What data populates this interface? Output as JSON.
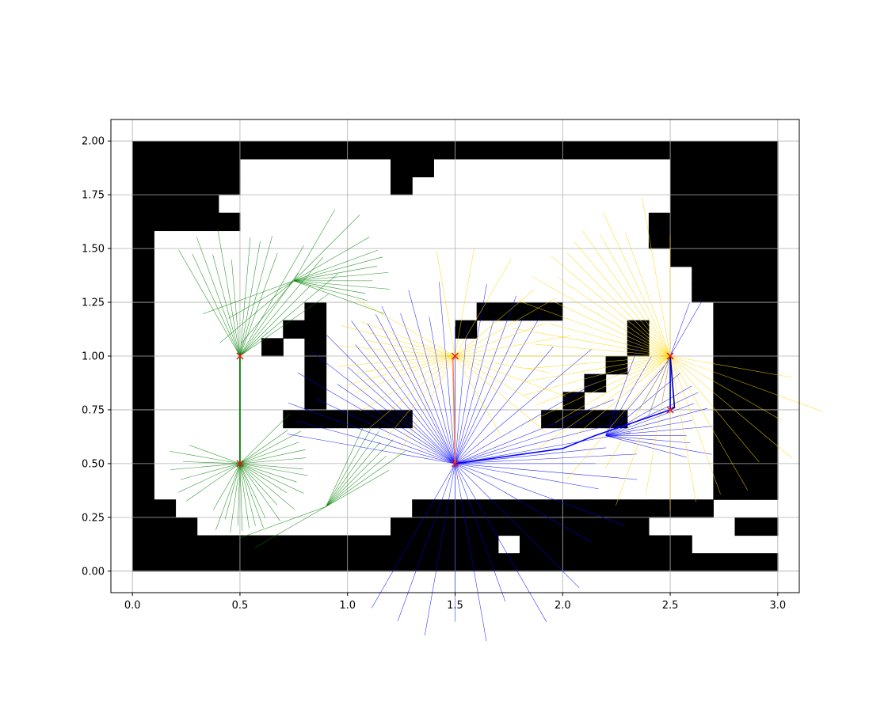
{
  "chart_data": {
    "type": "scatter",
    "title": "",
    "xlabel": "",
    "ylabel": "",
    "xlim": [
      -0.1,
      3.1
    ],
    "ylim": [
      -0.1,
      2.1
    ],
    "grid": true,
    "cell_size": 0.1,
    "xticks": [
      0.0,
      0.5,
      1.0,
      1.5,
      2.0,
      2.5,
      3.0
    ],
    "xtick_labels": [
      "0.0",
      "0.5",
      "1.0",
      "1.5",
      "2.0",
      "2.5",
      "3.0"
    ],
    "yticks": [
      0.0,
      0.25,
      0.5,
      0.75,
      1.0,
      1.25,
      1.5,
      1.75,
      2.0
    ],
    "ytick_labels": [
      "0.00",
      "0.25",
      "0.50",
      "0.75",
      "1.00",
      "1.25",
      "1.50",
      "1.75",
      "2.00"
    ],
    "occupancy_grid": [
      "##############################",
      "#####.......##...........#####",
      "#####.......#............#####",
      "####.....................#####",
      "#####...................######",
      "#.......................######",
      "#........................#####",
      "#.........................####",
      "#.........................####",
      "#.......#.......####.......###",
      "#......##......#.......#...###",
      "#.....#.#..............#...###",
      "#.......#.............#....###",
      "#.......#............#.....###",
      "#.......#...........#......###",
      "#......######......####....###",
      "#..........................###",
      "#..........................###",
      "#..........................###",
      "#..........................###",
      "##...........##############..",
      "###.........############....##",
      "#################.########....",
      "##############################"
    ],
    "nodes": [
      {
        "x": 0.5,
        "y": 1.0
      },
      {
        "x": 0.5,
        "y": 0.5
      },
      {
        "x": 1.5,
        "y": 1.0
      },
      {
        "x": 1.5,
        "y": 0.5
      },
      {
        "x": 2.5,
        "y": 1.0
      },
      {
        "x": 2.5,
        "y": 0.75
      }
    ],
    "node_marker_color": "#e41a1c",
    "series": [
      {
        "color": "#008000",
        "paths": [
          [
            [
              0.5,
              1.0
            ],
            [
              0.5,
              0.5
            ]
          ],
          [
            [
              0.5,
              0.5
            ],
            [
              0.5,
              1.0
            ]
          ]
        ],
        "ray_groups": [
          {
            "origin": [
              0.5,
              0.5
            ],
            "angles_deg": [
              -120,
              -110,
              -105,
              -98,
              -92,
              -88,
              -82,
              -76,
              -70,
              -65,
              -55,
              -48,
              -40,
              -32,
              -25,
              -18,
              -10,
              -5,
              5,
              12,
              20,
              28,
              35,
              45,
              160,
              170,
              178,
              185,
              195,
              205,
              215
            ],
            "length": 0.33
          },
          {
            "origin": [
              0.5,
              1.0
            ],
            "angles_deg": [
              95,
              100,
              105,
              110,
              115,
              120,
              85,
              80,
              75,
              70,
              60,
              55,
              50,
              45,
              40,
              35
            ],
            "length": 0.6
          },
          {
            "origin": [
              0.75,
              1.35
            ],
            "angles_deg": [
              -10,
              -5,
              0,
              5,
              10,
              15,
              20,
              30,
              45,
              60,
              -20,
              -15,
              200,
              210,
              220,
              230
            ],
            "length": 0.45
          },
          {
            "origin": [
              0.9,
              0.3
            ],
            "angles_deg": [
              30,
              35,
              40,
              45,
              50,
              55,
              60,
              65,
              200,
              210
            ],
            "length": 0.45
          }
        ]
      },
      {
        "color": "#0000ff",
        "paths": [
          [
            [
              1.5,
              0.5
            ],
            [
              2.0,
              0.57
            ],
            [
              2.15,
              0.63
            ],
            [
              2.5,
              0.75
            ]
          ],
          [
            [
              2.5,
              0.75
            ],
            [
              2.5,
              1.0
            ]
          ]
        ],
        "ray_groups": [
          {
            "origin": [
              1.5,
              0.5
            ],
            "angles_deg": [
              90,
              95,
              100,
              105,
              110,
              115,
              118,
              122,
              126,
              130,
              135,
              138,
              142,
              146,
              150,
              155,
              160,
              165,
              170,
              60,
              65,
              70,
              75,
              80,
              85,
              -60,
              -70,
              -80,
              -90,
              -100,
              -110,
              -120,
              -45,
              -30,
              -20,
              -10,
              -5,
              0,
              3,
              6,
              10,
              14,
              18,
              22,
              30,
              40,
              50
            ],
            "length": 0.85
          },
          {
            "origin": [
              2.2,
              0.63
            ],
            "angles_deg": [
              0,
              5,
              10,
              15,
              20,
              25,
              30,
              40,
              50,
              60,
              70,
              -5,
              -10,
              -15
            ],
            "length": 0.5
          },
          {
            "origin": [
              2.5,
              1.0
            ],
            "angles_deg": [
              -100,
              -110,
              -120,
              60,
              70,
              240,
              250
            ],
            "length": 0.3
          }
        ]
      },
      {
        "color": "#ffd700",
        "paths": [],
        "ray_groups": [
          {
            "origin": [
              1.5,
              1.0
            ],
            "angles_deg": [
              0,
              10,
              20,
              30,
              40,
              60,
              80,
              100,
              150,
              160,
              165,
              170,
              175,
              180,
              185,
              190,
              195,
              200,
              210,
              220,
              230,
              240,
              -10,
              -20,
              -30,
              -40,
              -60
            ],
            "length": 0.55
          },
          {
            "origin": [
              2.5,
              1.0
            ],
            "angles_deg": [
              90,
              100,
              110,
              115,
              120,
              125,
              130,
              135,
              140,
              145,
              150,
              155,
              160,
              165,
              170,
              175,
              180,
              185,
              190,
              195,
              200,
              205,
              210,
              215,
              220,
              230,
              240,
              250,
              260,
              270,
              280,
              290,
              300,
              310,
              320,
              330,
              340,
              350
            ],
            "length": 0.75
          }
        ]
      },
      {
        "color": "#ff7f50",
        "paths": [
          [
            [
              1.5,
              0.5
            ],
            [
              1.49,
              0.98
            ],
            [
              1.5,
              1.0
            ]
          ]
        ],
        "ray_groups": []
      },
      {
        "color": "#00008b",
        "paths": [
          [
            [
              2.5,
              1.0
            ],
            [
              2.52,
              0.76
            ],
            [
              2.5,
              0.75
            ]
          ]
        ],
        "ray_groups": []
      }
    ]
  }
}
